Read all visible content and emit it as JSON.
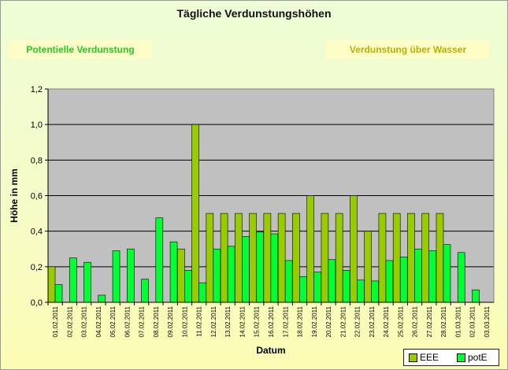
{
  "title": "Tägliche Verdunstungshöhen",
  "label_left": "Potentielle Verdunstung",
  "label_right": "Verdunstung über Wasser",
  "chart_data": {
    "type": "bar",
    "title": "Tägliche Verdunstungshöhen",
    "xlabel": "Datum",
    "ylabel": "Höhe in mm",
    "ylim": [
      0,
      1.2
    ],
    "yticks": [
      "0,0",
      "0,2",
      "0,4",
      "0,6",
      "0,8",
      "1,0",
      "1,2"
    ],
    "grid": true,
    "legend_position": "bottom-right",
    "categories": [
      "01.02.2011",
      "02.02.2011",
      "03.02.2011",
      "04.02.2011",
      "05.02.2011",
      "06.02.2011",
      "07.02.2011",
      "08.02.2011",
      "09.02.2011",
      "10.02.2011",
      "11.02.2011",
      "12.02.2011",
      "13.02.2011",
      "14.02.2011",
      "15.02.2011",
      "16.02.2011",
      "17.02.2011",
      "18.02.2011",
      "19.02.2011",
      "20.02.2011",
      "21.02.2011",
      "22.02.2011",
      "23.02.2011",
      "24.02.2011",
      "25.02.2011",
      "26.02.2011",
      "27.02.2011",
      "28.02.2011",
      "01.03.2011",
      "02.03.2011",
      "03.03.2011"
    ],
    "series": [
      {
        "name": "EEE",
        "color": "#99cc00",
        "values": [
          0.2,
          0,
          0,
          0,
          0,
          0,
          0,
          0,
          0,
          0.3,
          1.0,
          0.5,
          0.5,
          0.5,
          0.5,
          0.5,
          0.5,
          0.5,
          0.6,
          0.5,
          0.5,
          0.6,
          0.4,
          0.5,
          0.5,
          0.5,
          0.5,
          0.5,
          0,
          0,
          0
        ]
      },
      {
        "name": "potE",
        "color": "#00ff33",
        "values": [
          0.1,
          0.25,
          0.225,
          0.04,
          0.29,
          0.3,
          0.13,
          0.475,
          0.34,
          0.18,
          0.11,
          0.3,
          0.315,
          0.37,
          0.395,
          0.385,
          0.235,
          0.145,
          0.17,
          0.24,
          0.18,
          0.125,
          0.12,
          0.235,
          0.255,
          0.3,
          0.29,
          0.325,
          0.28,
          0.07,
          0
        ]
      }
    ]
  }
}
